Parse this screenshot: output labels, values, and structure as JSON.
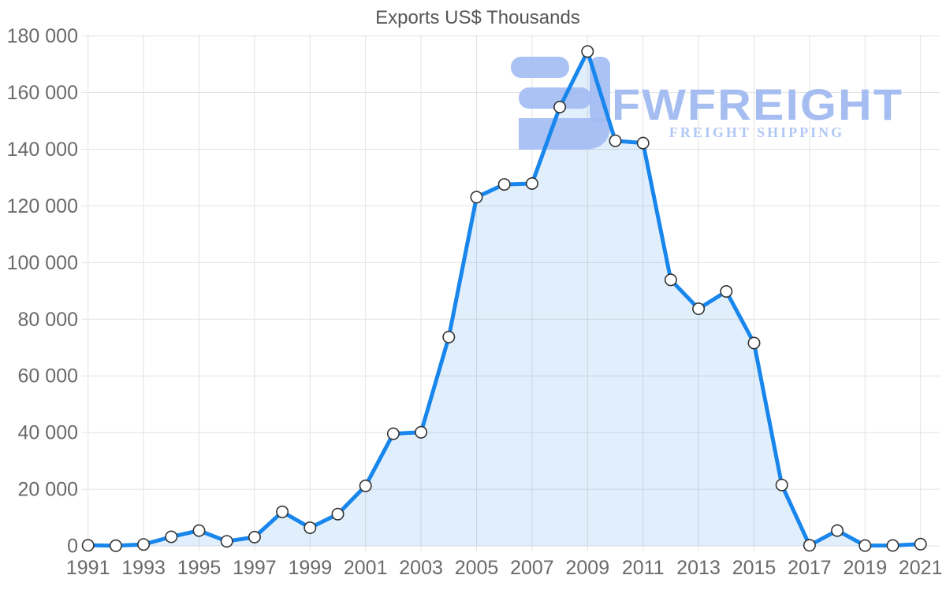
{
  "chart_data": {
    "type": "area",
    "title": "Exports US$ Thousands",
    "xlabel": "",
    "ylabel": "",
    "x": [
      1991,
      1992,
      1993,
      1994,
      1995,
      1996,
      1997,
      1998,
      1999,
      2000,
      2001,
      2002,
      2003,
      2004,
      2005,
      2006,
      2007,
      2008,
      2009,
      2010,
      2011,
      2012,
      2013,
      2014,
      2015,
      2016,
      2017,
      2018,
      2019,
      2020,
      2021
    ],
    "values": [
      200,
      50,
      500,
      3200,
      5400,
      1600,
      3100,
      12000,
      6400,
      11200,
      21200,
      39600,
      40100,
      73700,
      123100,
      127600,
      127900,
      154900,
      174500,
      143000,
      142200,
      93900,
      83700,
      89800,
      71600,
      21500,
      200,
      5400,
      100,
      150,
      600
    ],
    "y_ticks": [
      0,
      20000,
      40000,
      60000,
      80000,
      100000,
      120000,
      140000,
      160000,
      180000
    ],
    "y_tick_labels": [
      "0",
      "20 000",
      "40 000",
      "60 000",
      "80 000",
      "100 000",
      "120 000",
      "140 000",
      "160 000",
      "180 000"
    ],
    "x_tick_labels": [
      "1991",
      "1993",
      "1995",
      "1997",
      "1999",
      "2001",
      "2003",
      "2005",
      "2007",
      "2009",
      "2011",
      "2013",
      "2015",
      "2017",
      "2019",
      "2021"
    ],
    "ylim": [
      0,
      180000
    ],
    "grid": true,
    "legend": false,
    "marker": "circle",
    "colors": {
      "line": "#1886ec",
      "fill": "rgba(24,134,232,0.13)",
      "grid": "#e2e2e2",
      "tick_label": "#6a6a6a",
      "title": "#575757",
      "marker_fill": "#ffffff",
      "marker_stroke": "#333333"
    }
  },
  "watermark": {
    "brand": "FWFREIGHT",
    "tagline": "FREIGHT SHIPPING",
    "brand_color": "#a5bdf1",
    "tagline_color": "#b0c7f6",
    "icon_color": "#9fbaf2"
  }
}
